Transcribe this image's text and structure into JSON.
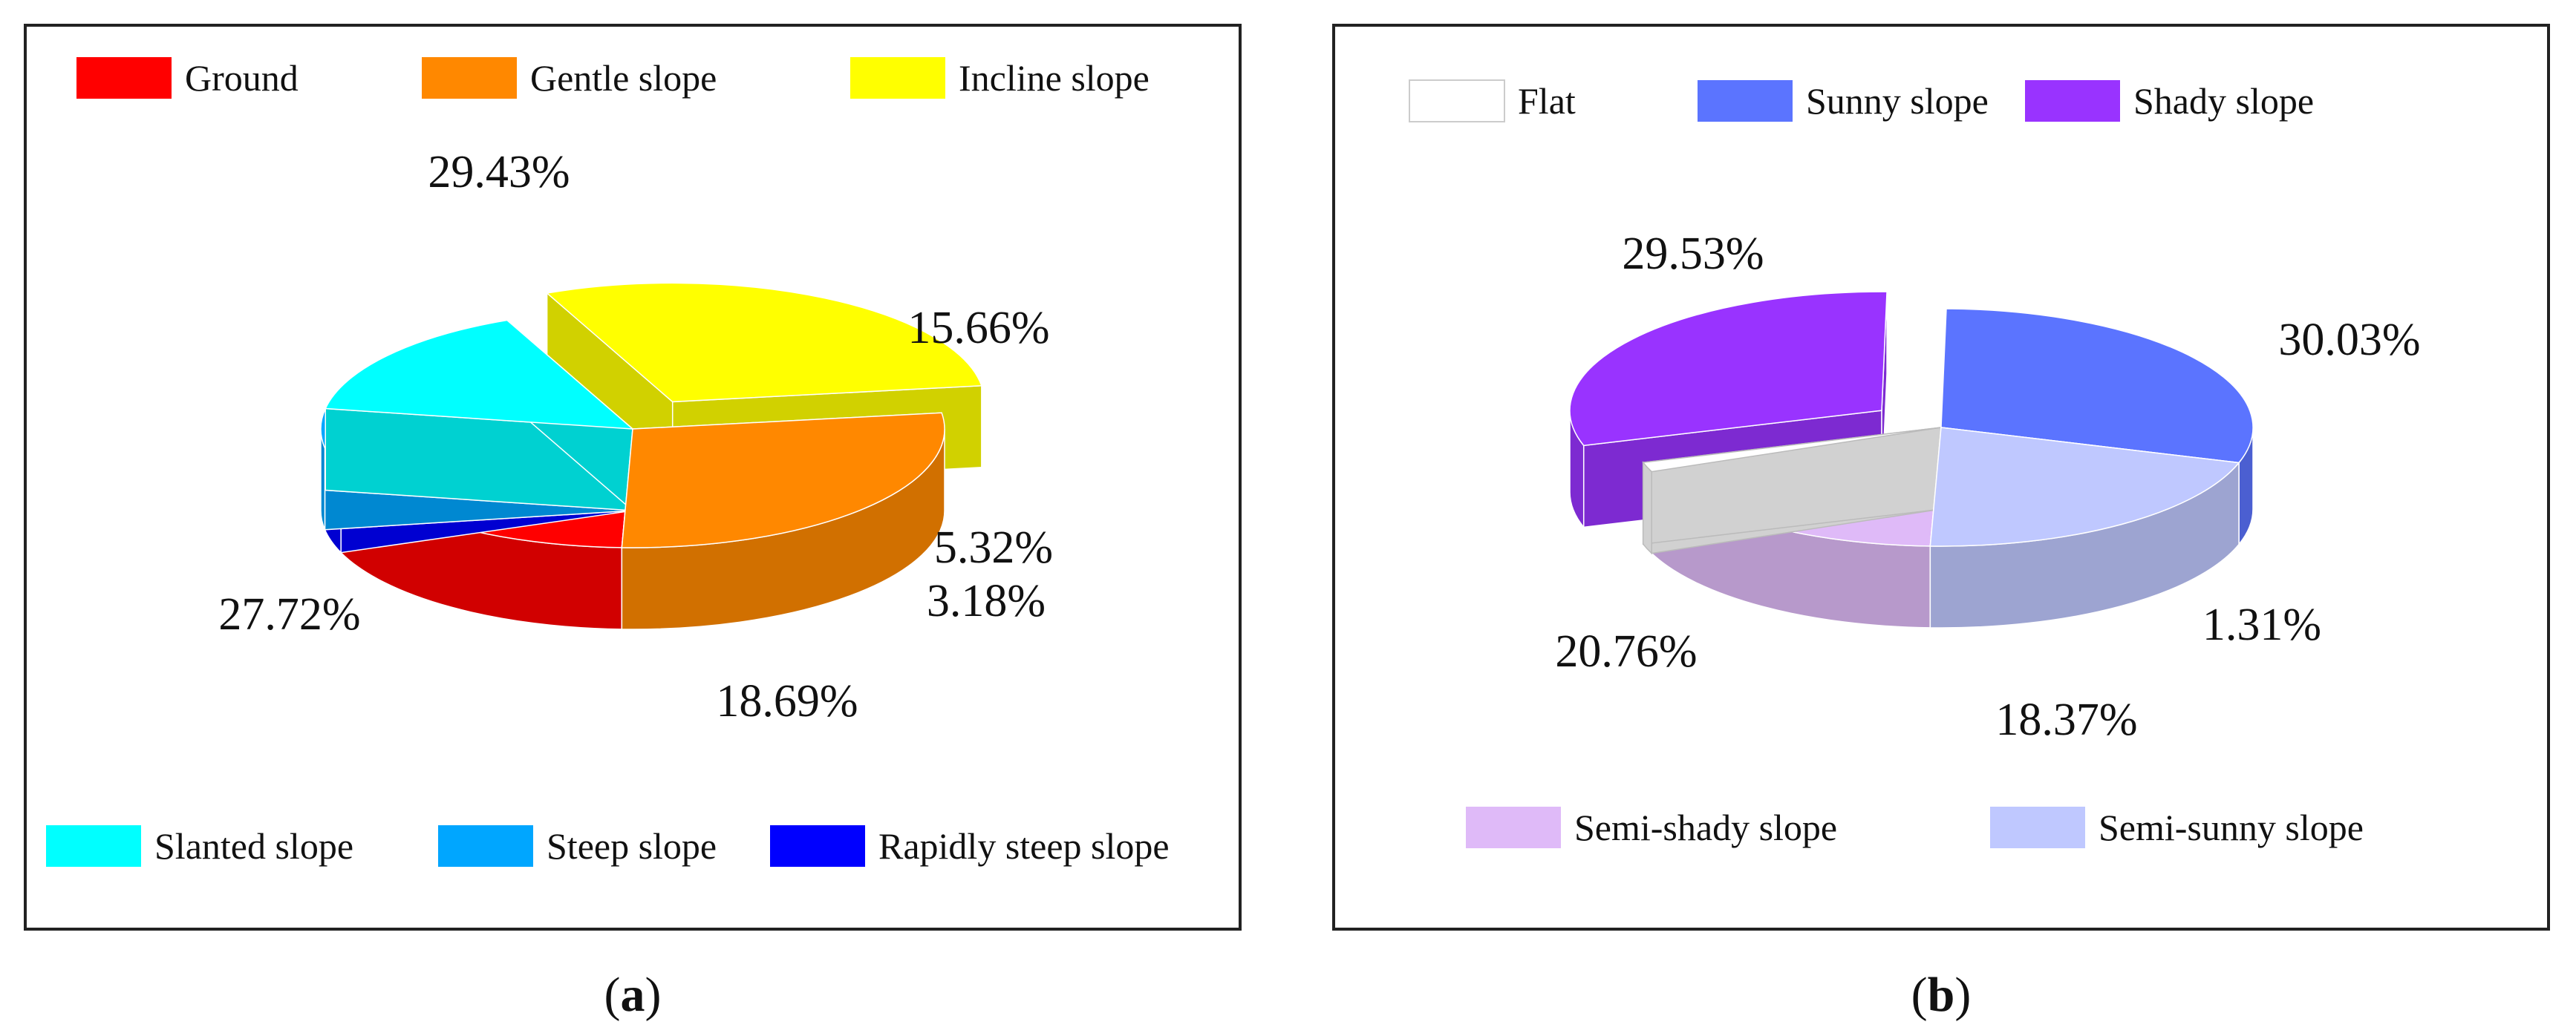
{
  "captions": {
    "a": "a",
    "b": "b"
  },
  "colors": {
    "ground": "#ff0000",
    "gentle": "#ff8800",
    "incline": "#ffff00",
    "slanted": "#00ffff",
    "steep": "#00a6ff",
    "rapid": "#0000ff",
    "flat": "#ffffff",
    "sunny": "#5b74ff",
    "shady": "#9933ff",
    "semi_shady": "#dfbaf8",
    "semi_sunny": "#bfc8ff"
  },
  "chart_data": [
    {
      "type": "pie",
      "style": "3d-exploded",
      "caption": "(a)",
      "legend_top": [
        "Ground",
        "Gentle slope",
        "Incline slope"
      ],
      "legend_bottom": [
        "Slanted slope",
        "Steep slope",
        "Rapidly steep slope"
      ],
      "slices": [
        {
          "label": "Ground",
          "value": 18.69,
          "display": "18.69%",
          "color_key": "ground"
        },
        {
          "label": "Rapidly steep slope",
          "value": 3.18,
          "display": "3.18%",
          "color_key": "rapid"
        },
        {
          "label": "Steep slope",
          "value": 5.32,
          "display": "5.32%",
          "color_key": "steep"
        },
        {
          "label": "Slanted slope",
          "value": 15.66,
          "display": "15.66%",
          "color_key": "slanted"
        },
        {
          "label": "Incline slope",
          "value": 29.43,
          "display": "29.43%",
          "color_key": "incline",
          "exploded": true
        },
        {
          "label": "Gentle slope",
          "value": 27.72,
          "display": "27.72%",
          "color_key": "gentle"
        }
      ]
    },
    {
      "type": "pie",
      "style": "3d-exploded",
      "caption": "(b)",
      "legend_top": [
        "Flat",
        "Sunny slope",
        "Shady slope"
      ],
      "legend_bottom": [
        "Semi-shady slope",
        "Semi-sunny slope"
      ],
      "slices": [
        {
          "label": "Semi-shady slope",
          "value": 18.37,
          "display": "18.37%",
          "color_key": "semi_shady"
        },
        {
          "label": "Flat",
          "value": 1.31,
          "display": "1.31%",
          "color_key": "flat"
        },
        {
          "label": "Shady slope",
          "value": 30.03,
          "display": "30.03%",
          "color_key": "shady",
          "exploded": true
        },
        {
          "label": "Sunny slope",
          "value": 29.53,
          "display": "29.53%",
          "color_key": "sunny"
        },
        {
          "label": "Semi-sunny slope",
          "value": 20.76,
          "display": "20.76%",
          "color_key": "semi_sunny"
        }
      ]
    }
  ]
}
